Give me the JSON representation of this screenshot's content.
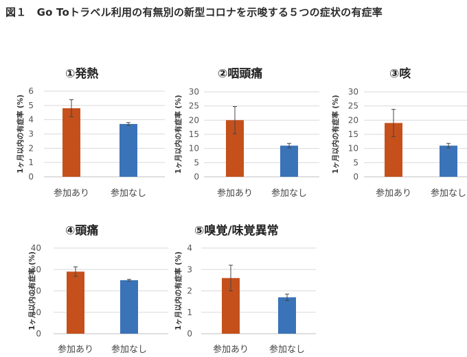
{
  "figure": {
    "title": "図１　Go Toトラベル利用の有無別の新型コロナを示唆する５つの症状の有症率"
  },
  "chart_data": [
    {
      "type": "bar",
      "title": "①発熱",
      "ylabel": "1ヶ月以内の有症率 (%)",
      "categories": [
        "参加あり",
        "参加なし"
      ],
      "values": [
        4.8,
        3.7
      ],
      "error": [
        0.6,
        0.1
      ],
      "ylim": [
        0,
        6
      ],
      "yticks": [
        0,
        1,
        2,
        3,
        4,
        5,
        6
      ],
      "colors": [
        "#c5501c",
        "#3a73b8"
      ],
      "grid": true
    },
    {
      "type": "bar",
      "title": "②咽頭痛",
      "ylabel": "1ヶ月以内の有症率 (%)",
      "categories": [
        "参加あり",
        "参加なし"
      ],
      "values": [
        20,
        11
      ],
      "error": [
        4.8,
        0.8
      ],
      "ylim": [
        0,
        30
      ],
      "yticks": [
        0,
        5,
        10,
        15,
        20,
        25,
        30
      ],
      "colors": [
        "#c5501c",
        "#3a73b8"
      ],
      "grid": true
    },
    {
      "type": "bar",
      "title": "③咳",
      "ylabel": "1ヶ月以内の有症率 (%)",
      "categories": [
        "参加あり",
        "参加なし"
      ],
      "values": [
        19,
        11
      ],
      "error": [
        4.8,
        0.8
      ],
      "ylim": [
        0,
        30
      ],
      "yticks": [
        0,
        5,
        10,
        15,
        20,
        25,
        30
      ],
      "colors": [
        "#c5501c",
        "#3a73b8"
      ],
      "grid": true
    },
    {
      "type": "bar",
      "title": "④頭痛",
      "ylabel": "1ヶ月以内の有症率 (%)",
      "categories": [
        "参加あり",
        "参加なし"
      ],
      "values": [
        29,
        25
      ],
      "error": [
        2.2,
        0.4
      ],
      "ylim": [
        0,
        40
      ],
      "yticks": [
        0,
        10,
        20,
        30,
        40
      ],
      "colors": [
        "#c5501c",
        "#3a73b8"
      ],
      "grid": true
    },
    {
      "type": "bar",
      "title": "⑤嗅覚/味覚異常",
      "ylabel": "1ヶ月以内の有症率 (%)",
      "categories": [
        "参加あり",
        "参加なし"
      ],
      "values": [
        2.6,
        1.7
      ],
      "error": [
        0.6,
        0.15
      ],
      "ylim": [
        0,
        4
      ],
      "yticks": [
        0,
        1,
        2,
        3,
        4
      ],
      "colors": [
        "#c5501c",
        "#3a73b8"
      ],
      "grid": true
    }
  ]
}
